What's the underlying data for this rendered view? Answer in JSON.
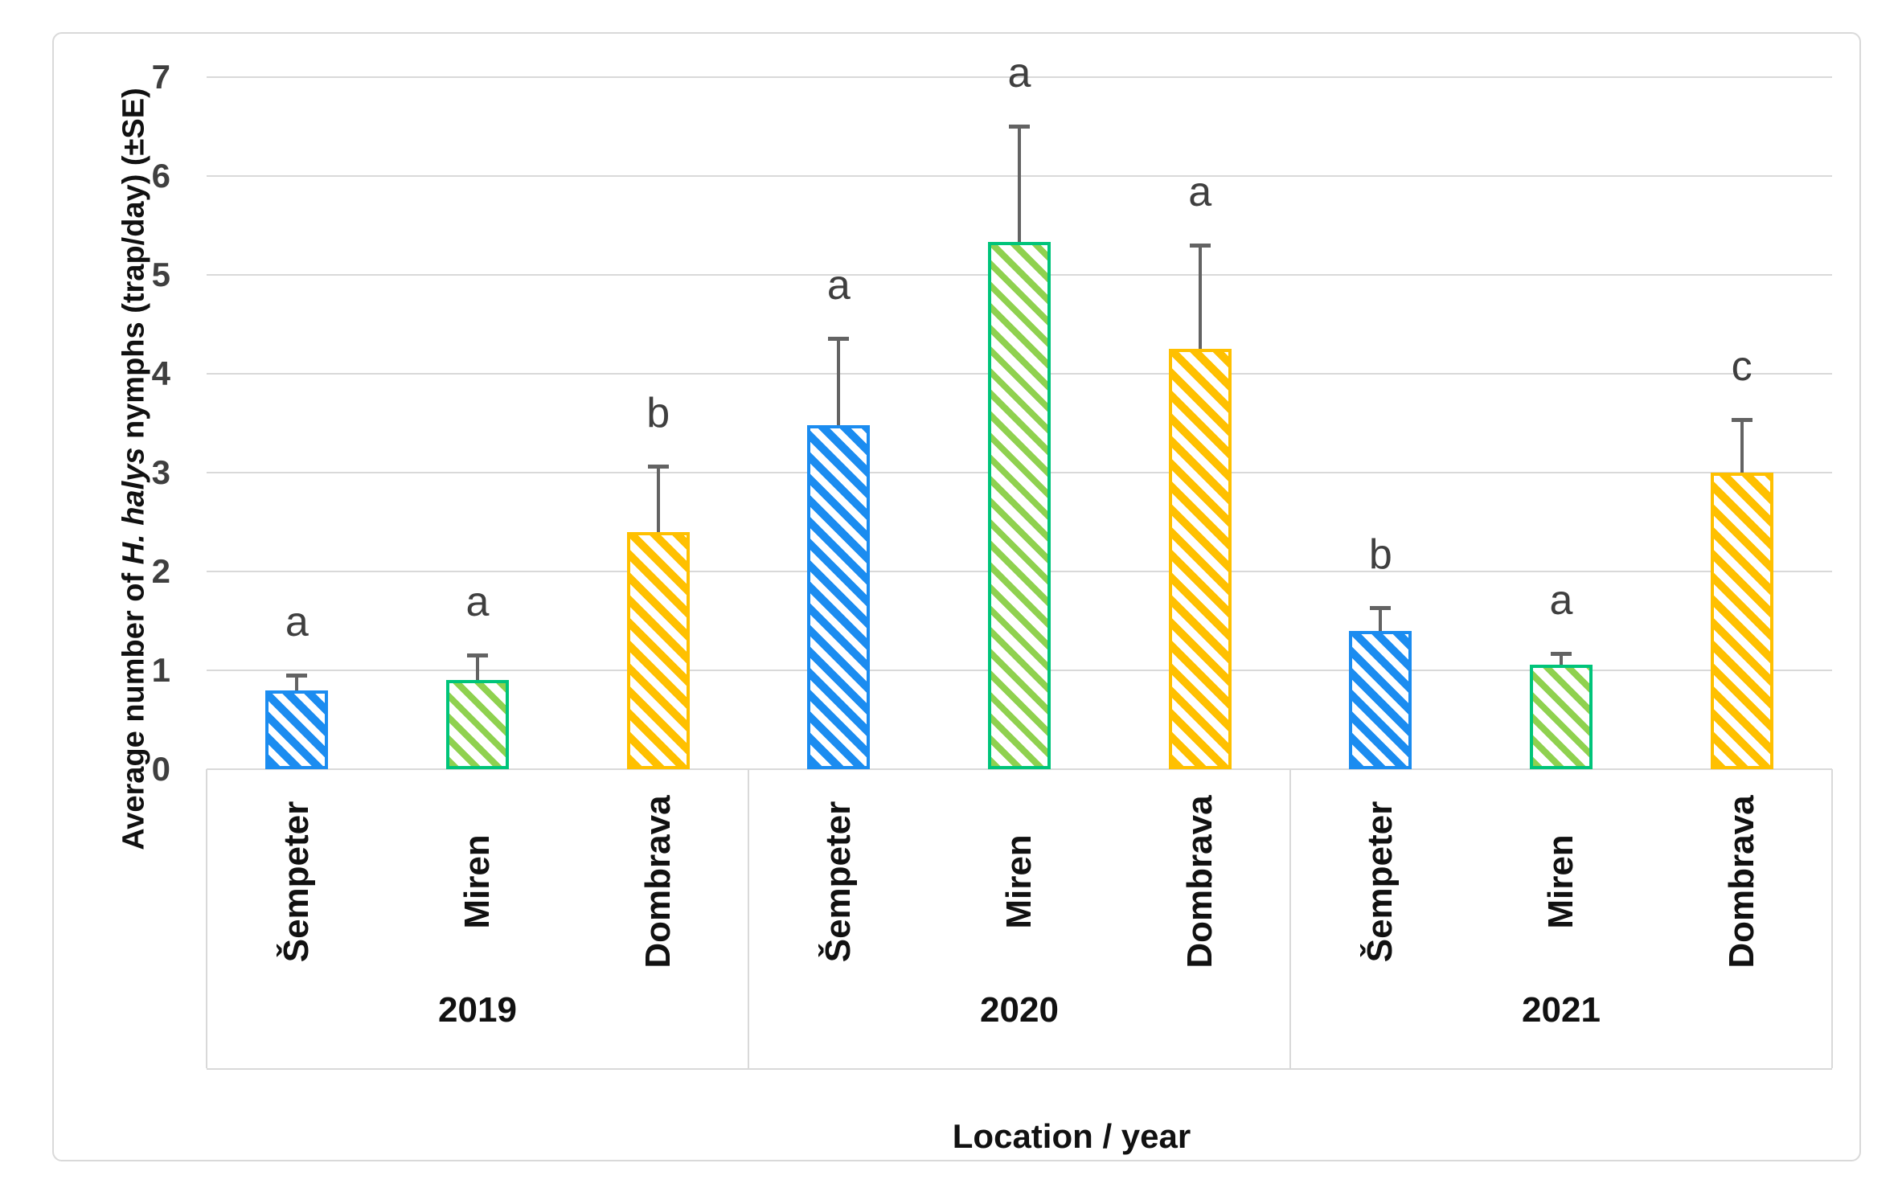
{
  "chart_data": {
    "type": "bar",
    "title": "",
    "xlabel": "Location / year",
    "ylabel": "Average number of H. halys nymphs (trap/day) (±SE)",
    "ylabel_prefix": "Average number of ",
    "ylabel_italic": "H. halys",
    "ylabel_suffix": " nymphs (trap/day)  (±SE)",
    "ylim": [
      0,
      7
    ],
    "yticks": [
      0,
      1,
      2,
      3,
      4,
      5,
      6,
      7
    ],
    "grid": "horizontal",
    "legend": "none",
    "categories": [
      "Šempeter",
      "Miren",
      "Dombrava"
    ],
    "groups": [
      {
        "year": "2019",
        "bars": [
          {
            "location": "Šempeter",
            "value": 0.8,
            "se": 0.17,
            "letter": "a"
          },
          {
            "location": "Miren",
            "value": 0.9,
            "se": 0.27,
            "letter": "a"
          },
          {
            "location": "Dombrava",
            "value": 2.4,
            "se": 0.68,
            "letter": "b"
          }
        ]
      },
      {
        "year": "2020",
        "bars": [
          {
            "location": "Šempeter",
            "value": 3.48,
            "se": 0.89,
            "letter": "a"
          },
          {
            "location": "Miren",
            "value": 5.33,
            "se": 1.19,
            "letter": "a"
          },
          {
            "location": "Dombrava",
            "value": 4.25,
            "se": 1.07,
            "letter": "a"
          }
        ]
      },
      {
        "year": "2021",
        "bars": [
          {
            "location": "Šempeter",
            "value": 1.4,
            "se": 0.25,
            "letter": "b"
          },
          {
            "location": "Miren",
            "value": 1.06,
            "se": 0.13,
            "letter": "a"
          },
          {
            "location": "Dombrava",
            "value": 3.0,
            "se": 0.55,
            "letter": "c"
          }
        ]
      }
    ],
    "location_styles": {
      "Šempeter": {
        "stroke": "#1B8CF0",
        "hatch": "#1B8CF0",
        "hatch_thickness": 10,
        "hatch_gap": 9
      },
      "Miren": {
        "stroke": "#00C47A",
        "hatch": "#8FD14F",
        "hatch_thickness": 8,
        "hatch_gap": 11
      },
      "Dombrava": {
        "stroke": "#FFC000",
        "hatch": "#FFC000",
        "hatch_thickness": 10,
        "hatch_gap": 10
      }
    },
    "colors": {
      "gridline": "#D9D9D9",
      "error_bar": "#636363",
      "tick_text": "#3F3F3F",
      "letter_text": "#3F3F3F",
      "label_text": "#111111"
    }
  }
}
